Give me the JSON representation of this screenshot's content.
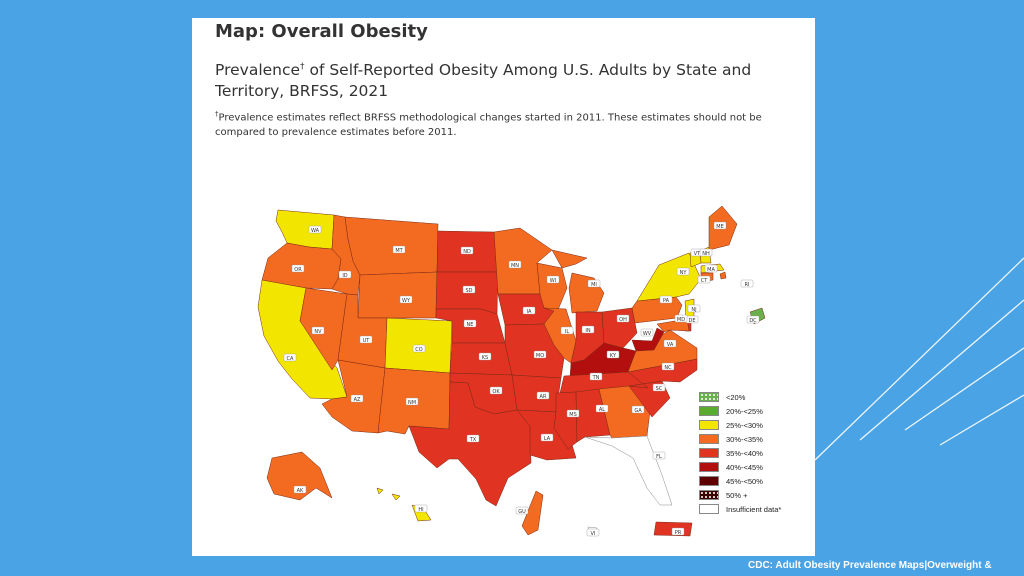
{
  "panel": {
    "title": "Map: Overall Obesity",
    "subtitle_prefix": "Prevalence",
    "subtitle_mark": "†",
    "subtitle_rest": " of Self-Reported Obesity Among U.S. Adults by State and Territory, BRFSS, 2021",
    "footnote_mark": "†",
    "footnote_text": "Prevalence estimates reflect BRFSS methodological changes started in 2011. These estimates should not be compared to prevalence estimates before 2011."
  },
  "caption": "CDC: Adult Obesity Prevalence Maps|Overweight &",
  "colors": {
    "background": "#4aa3e4",
    "lt20": "#6ab04c",
    "20_25": "#5aab2e",
    "25_30": "#f2e600",
    "30_35": "#f26b21",
    "35_40": "#e03322",
    "40_45": "#b30f0f",
    "45_50": "#5c0000",
    "50_plus": "#3b0000",
    "insufficient": "#ffffff"
  },
  "legend": [
    {
      "label": "<20%",
      "color_key": "lt20",
      "dotted": true
    },
    {
      "label": "20%-<25%",
      "color_key": "20_25",
      "dotted": false
    },
    {
      "label": "25%-<30%",
      "color_key": "25_30",
      "dotted": false
    },
    {
      "label": "30%-<35%",
      "color_key": "30_35",
      "dotted": false
    },
    {
      "label": "35%-<40%",
      "color_key": "35_40",
      "dotted": false
    },
    {
      "label": "40%-<45%",
      "color_key": "40_45",
      "dotted": false
    },
    {
      "label": "45%-<50%",
      "color_key": "45_50",
      "dotted": false
    },
    {
      "label": "50% +",
      "color_key": "50_plus",
      "dotted": true
    },
    {
      "label": "Insufficient data*",
      "color_key": "insufficient",
      "dotted": false
    }
  ],
  "map_data": {
    "states": [
      {
        "abbr": "WA",
        "category": "25_30"
      },
      {
        "abbr": "OR",
        "category": "30_35"
      },
      {
        "abbr": "CA",
        "category": "25_30"
      },
      {
        "abbr": "NV",
        "category": "30_35"
      },
      {
        "abbr": "ID",
        "category": "30_35"
      },
      {
        "abbr": "MT",
        "category": "30_35"
      },
      {
        "abbr": "WY",
        "category": "30_35"
      },
      {
        "abbr": "UT",
        "category": "30_35"
      },
      {
        "abbr": "AZ",
        "category": "30_35"
      },
      {
        "abbr": "CO",
        "category": "25_30"
      },
      {
        "abbr": "NM",
        "category": "30_35"
      },
      {
        "abbr": "ND",
        "category": "35_40"
      },
      {
        "abbr": "SD",
        "category": "35_40"
      },
      {
        "abbr": "NE",
        "category": "35_40"
      },
      {
        "abbr": "KS",
        "category": "35_40"
      },
      {
        "abbr": "OK",
        "category": "35_40"
      },
      {
        "abbr": "TX",
        "category": "35_40"
      },
      {
        "abbr": "MN",
        "category": "30_35"
      },
      {
        "abbr": "IA",
        "category": "35_40"
      },
      {
        "abbr": "MO",
        "category": "35_40"
      },
      {
        "abbr": "AR",
        "category": "35_40"
      },
      {
        "abbr": "LA",
        "category": "35_40"
      },
      {
        "abbr": "WI",
        "category": "30_35"
      },
      {
        "abbr": "IL",
        "category": "30_35"
      },
      {
        "abbr": "MI",
        "category": "30_35"
      },
      {
        "abbr": "IN",
        "category": "35_40"
      },
      {
        "abbr": "OH",
        "category": "35_40"
      },
      {
        "abbr": "KY",
        "category": "40_45"
      },
      {
        "abbr": "TN",
        "category": "35_40"
      },
      {
        "abbr": "MS",
        "category": "35_40"
      },
      {
        "abbr": "AL",
        "category": "35_40"
      },
      {
        "abbr": "GA",
        "category": "30_35"
      },
      {
        "abbr": "FL",
        "category": "insufficient"
      },
      {
        "abbr": "SC",
        "category": "35_40"
      },
      {
        "abbr": "NC",
        "category": "35_40"
      },
      {
        "abbr": "VA",
        "category": "30_35"
      },
      {
        "abbr": "WV",
        "category": "40_45"
      },
      {
        "abbr": "PA",
        "category": "30_35"
      },
      {
        "abbr": "NY",
        "category": "25_30"
      },
      {
        "abbr": "VT",
        "category": "25_30"
      },
      {
        "abbr": "NH",
        "category": "25_30"
      },
      {
        "abbr": "ME",
        "category": "30_35"
      },
      {
        "abbr": "MA",
        "category": "25_30"
      },
      {
        "abbr": "RI",
        "category": "30_35"
      },
      {
        "abbr": "CT",
        "category": "30_35"
      },
      {
        "abbr": "NJ",
        "category": "25_30"
      },
      {
        "abbr": "DE",
        "category": "35_40"
      },
      {
        "abbr": "MD",
        "category": "30_35"
      },
      {
        "abbr": "DC",
        "category": "lt20"
      },
      {
        "abbr": "AK",
        "category": "30_35"
      },
      {
        "abbr": "HI",
        "category": "25_30"
      },
      {
        "abbr": "GU",
        "category": "30_35"
      },
      {
        "abbr": "PR",
        "category": "35_40"
      },
      {
        "abbr": "VI",
        "category": "insufficient"
      }
    ]
  }
}
